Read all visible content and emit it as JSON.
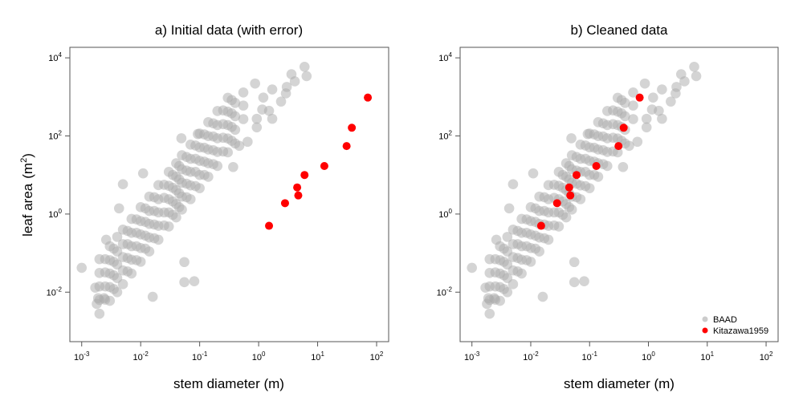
{
  "chart_data": [
    {
      "type": "scatter",
      "title": "a) Initial data (with error)",
      "xlabel": "stem diameter (m)",
      "ylabel": "leaf area",
      "ylabel_unit": "m",
      "ylabel_unit_exp": "2",
      "x_scale": "log",
      "y_scale": "log",
      "xlim": [
        0.00063,
        160
      ],
      "ylim": [
        0.00054,
        18600
      ],
      "x_ticks": [
        {
          "base": "10",
          "exp": "-3",
          "value": 0.001
        },
        {
          "base": "10",
          "exp": "-2",
          "value": 0.01
        },
        {
          "base": "10",
          "exp": "-1",
          "value": 0.1
        },
        {
          "base": "10",
          "exp": "0",
          "value": 1
        },
        {
          "base": "10",
          "exp": "1",
          "value": 10
        },
        {
          "base": "10",
          "exp": "2",
          "value": 100
        }
      ],
      "y_ticks": [
        {
          "base": "10",
          "exp": "-2",
          "value": 0.01
        },
        {
          "base": "10",
          "exp": "0",
          "value": 1
        },
        {
          "base": "10",
          "exp": "2",
          "value": 100
        },
        {
          "base": "10",
          "exp": "4",
          "value": 10000
        }
      ],
      "grid": false,
      "legend": null,
      "series_ref": "baad",
      "red_series": [
        [
          1.5,
          0.5
        ],
        [
          2.8,
          1.9
        ],
        [
          4.5,
          4.8
        ],
        [
          4.7,
          3.0
        ],
        [
          6.0,
          10
        ],
        [
          13,
          17
        ],
        [
          31,
          55
        ],
        [
          38,
          162
        ],
        [
          71,
          960
        ]
      ]
    },
    {
      "type": "scatter",
      "title": "b) Cleaned data",
      "xlabel": "stem diameter (m)",
      "x_scale": "log",
      "y_scale": "log",
      "xlim": [
        0.00063,
        160
      ],
      "ylim": [
        0.00054,
        18600
      ],
      "x_ticks": [
        {
          "base": "10",
          "exp": "-3",
          "value": 0.001
        },
        {
          "base": "10",
          "exp": "-2",
          "value": 0.01
        },
        {
          "base": "10",
          "exp": "-1",
          "value": 0.1
        },
        {
          "base": "10",
          "exp": "0",
          "value": 1
        },
        {
          "base": "10",
          "exp": "1",
          "value": 10
        },
        {
          "base": "10",
          "exp": "2",
          "value": 100
        }
      ],
      "y_ticks": [
        {
          "base": "10",
          "exp": "-2",
          "value": 0.01
        },
        {
          "base": "10",
          "exp": "0",
          "value": 1
        },
        {
          "base": "10",
          "exp": "2",
          "value": 100
        },
        {
          "base": "10",
          "exp": "4",
          "value": 10000
        }
      ],
      "grid": false,
      "legend": {
        "placement": "bottom-right",
        "entries": [
          {
            "name": "BAAD",
            "color": "#bbbbbb"
          },
          {
            "name": "Kitazawa1959",
            "color": "#ff0000"
          }
        ]
      },
      "series_ref": "baad",
      "red_series": [
        [
          0.015,
          0.5
        ],
        [
          0.028,
          1.9
        ],
        [
          0.045,
          4.8
        ],
        [
          0.047,
          3.0
        ],
        [
          0.06,
          10
        ],
        [
          0.13,
          17
        ],
        [
          0.31,
          55
        ],
        [
          0.38,
          162
        ],
        [
          0.71,
          960
        ]
      ]
    }
  ],
  "series": {
    "baad": {
      "name": "BAAD",
      "color": "#aaaaaa",
      "points": [
        {
          "x": 0.002,
          "y": [
            0.0028,
            0.0063,
            0.014,
            0.031,
            0.07
          ]
        },
        {
          "x": 0.0025,
          "y": [
            0.0064,
            0.014,
            0.032,
            0.07
          ]
        },
        {
          "x": 0.003,
          "y": [
            0.006,
            0.0135,
            0.03,
            0.066,
            0.15
          ]
        },
        {
          "x": 0.0035,
          "y": [
            0.012,
            0.027,
            0.06,
            0.13
          ]
        },
        {
          "x": 0.004,
          "y": [
            0.01,
            0.023,
            0.051,
            0.11,
            0.26
          ]
        },
        {
          "x": 0.005,
          "y": [
            0.016,
            0.036,
            0.079,
            0.17,
            0.4
          ]
        },
        {
          "x": 0.006,
          "y": [
            0.034,
            0.075,
            0.17,
            0.37
          ]
        },
        {
          "x": 0.007,
          "y": [
            0.03,
            0.068,
            0.15,
            0.33,
            0.75
          ]
        },
        {
          "x": 0.0085,
          "y": [
            0.066,
            0.15,
            0.33,
            0.73
          ]
        },
        {
          "x": 0.01,
          "y": [
            0.06,
            0.135,
            0.3,
            0.66,
            1.5
          ]
        },
        {
          "x": 0.012,
          "y": [
            0.13,
            0.28,
            0.63,
            1.4
          ]
        },
        {
          "x": 0.014,
          "y": [
            0.11,
            0.25,
            0.56,
            1.2,
            2.8
          ]
        },
        {
          "x": 0.017,
          "y": [
            0.24,
            0.54,
            1.2,
            2.7
          ]
        },
        {
          "x": 0.02,
          "y": [
            0.22,
            0.5,
            1.1,
            2.4,
            5.5
          ]
        },
        {
          "x": 0.025,
          "y": [
            0.51,
            1.1,
            2.6,
            5.6
          ]
        },
        {
          "x": 0.03,
          "y": [
            0.48,
            1.1,
            2.4,
            5.3,
            12
          ]
        },
        {
          "x": 0.035,
          "y": [
            0.95,
            2.1,
            4.7,
            10
          ]
        },
        {
          "x": 0.04,
          "y": [
            0.82,
            1.8,
            4.1,
            9,
            20
          ]
        },
        {
          "x": 0.045,
          "y": [
            1.5,
            3.4,
            7.7,
            17
          ]
        },
        {
          "x": 0.05,
          "y": [
            1.3,
            2.8,
            6.3,
            14,
            32
          ]
        },
        {
          "x": 0.06,
          "y": [
            2.7,
            6,
            13,
            29
          ]
        },
        {
          "x": 0.07,
          "y": [
            2.4,
            5.4,
            12,
            26,
            60
          ]
        },
        {
          "x": 0.085,
          "y": [
            5.2,
            12,
            26,
            57
          ]
        },
        {
          "x": 0.1,
          "y": [
            4.6,
            10,
            23,
            51,
            115
          ]
        },
        {
          "x": 0.12,
          "y": [
            10,
            22,
            50,
            110
          ]
        },
        {
          "x": 0.14,
          "y": [
            9,
            20,
            45,
            99,
            225
          ]
        },
        {
          "x": 0.17,
          "y": [
            19,
            43,
            97,
            210
          ]
        },
        {
          "x": 0.2,
          "y": [
            17,
            39,
            87,
            190,
            435
          ]
        },
        {
          "x": 0.25,
          "y": [
            40,
            90,
            200,
            450
          ]
        },
        {
          "x": 0.3,
          "y": [
            38,
            86,
            190,
            420,
            950
          ]
        },
        {
          "x": 0.35,
          "y": [
            75,
            170,
            380,
            830
          ]
        },
        {
          "x": 0.4,
          "y": [
            64,
            144,
            320,
            700
          ]
        },
        {
          "x": 0.55,
          "y": [
            270,
            600,
            1300
          ]
        },
        {
          "x": 0.001,
          "y": [
            0.042
          ]
        },
        {
          "x": 0.0018,
          "y": [
            0.005
          ]
        },
        {
          "x": 0.0019,
          "y": [
            0.007
          ]
        },
        {
          "x": 0.0024,
          "y": [
            0.007
          ]
        },
        {
          "x": 0.0017,
          "y": [
            0.013
          ]
        },
        {
          "x": 0.0026,
          "y": [
            0.22
          ]
        },
        {
          "x": 0.0043,
          "y": [
            1.4
          ]
        },
        {
          "x": 0.005,
          "y": [
            5.8
          ]
        },
        {
          "x": 0.011,
          "y": [
            11
          ]
        },
        {
          "x": 0.016,
          "y": [
            0.0076
          ]
        },
        {
          "x": 0.055,
          "y": [
            0.018,
            0.059
          ]
        },
        {
          "x": 0.081,
          "y": [
            0.019
          ]
        },
        {
          "x": 0.049,
          "y": [
            87
          ]
        },
        {
          "x": 0.093,
          "y": [
            112
          ]
        },
        {
          "x": 0.37,
          "y": [
            16
          ]
        },
        {
          "x": 0.47,
          "y": [
            56
          ]
        },
        {
          "x": 0.65,
          "y": [
            71
          ]
        },
        {
          "x": 0.93,
          "y": [
            166,
            275
          ]
        },
        {
          "x": 0.87,
          "y": [
            2200
          ]
        },
        {
          "x": 1.15,
          "y": [
            475
          ]
        },
        {
          "x": 1.2,
          "y": [
            960
          ]
        },
        {
          "x": 1.5,
          "y": [
            440
          ]
        },
        {
          "x": 1.7,
          "y": [
            275,
            1550
          ]
        },
        {
          "x": 2.4,
          "y": [
            760
          ]
        },
        {
          "x": 2.9,
          "y": [
            1230
          ]
        },
        {
          "x": 3.0,
          "y": [
            1800
          ]
        },
        {
          "x": 3.6,
          "y": [
            3800
          ]
        },
        {
          "x": 4.1,
          "y": [
            2500
          ]
        },
        {
          "x": 6.0,
          "y": [
            5900
          ]
        },
        {
          "x": 6.5,
          "y": [
            3400
          ]
        }
      ]
    },
    "red": {
      "name": "Kitazawa1959",
      "color": "#ff0000"
    }
  }
}
